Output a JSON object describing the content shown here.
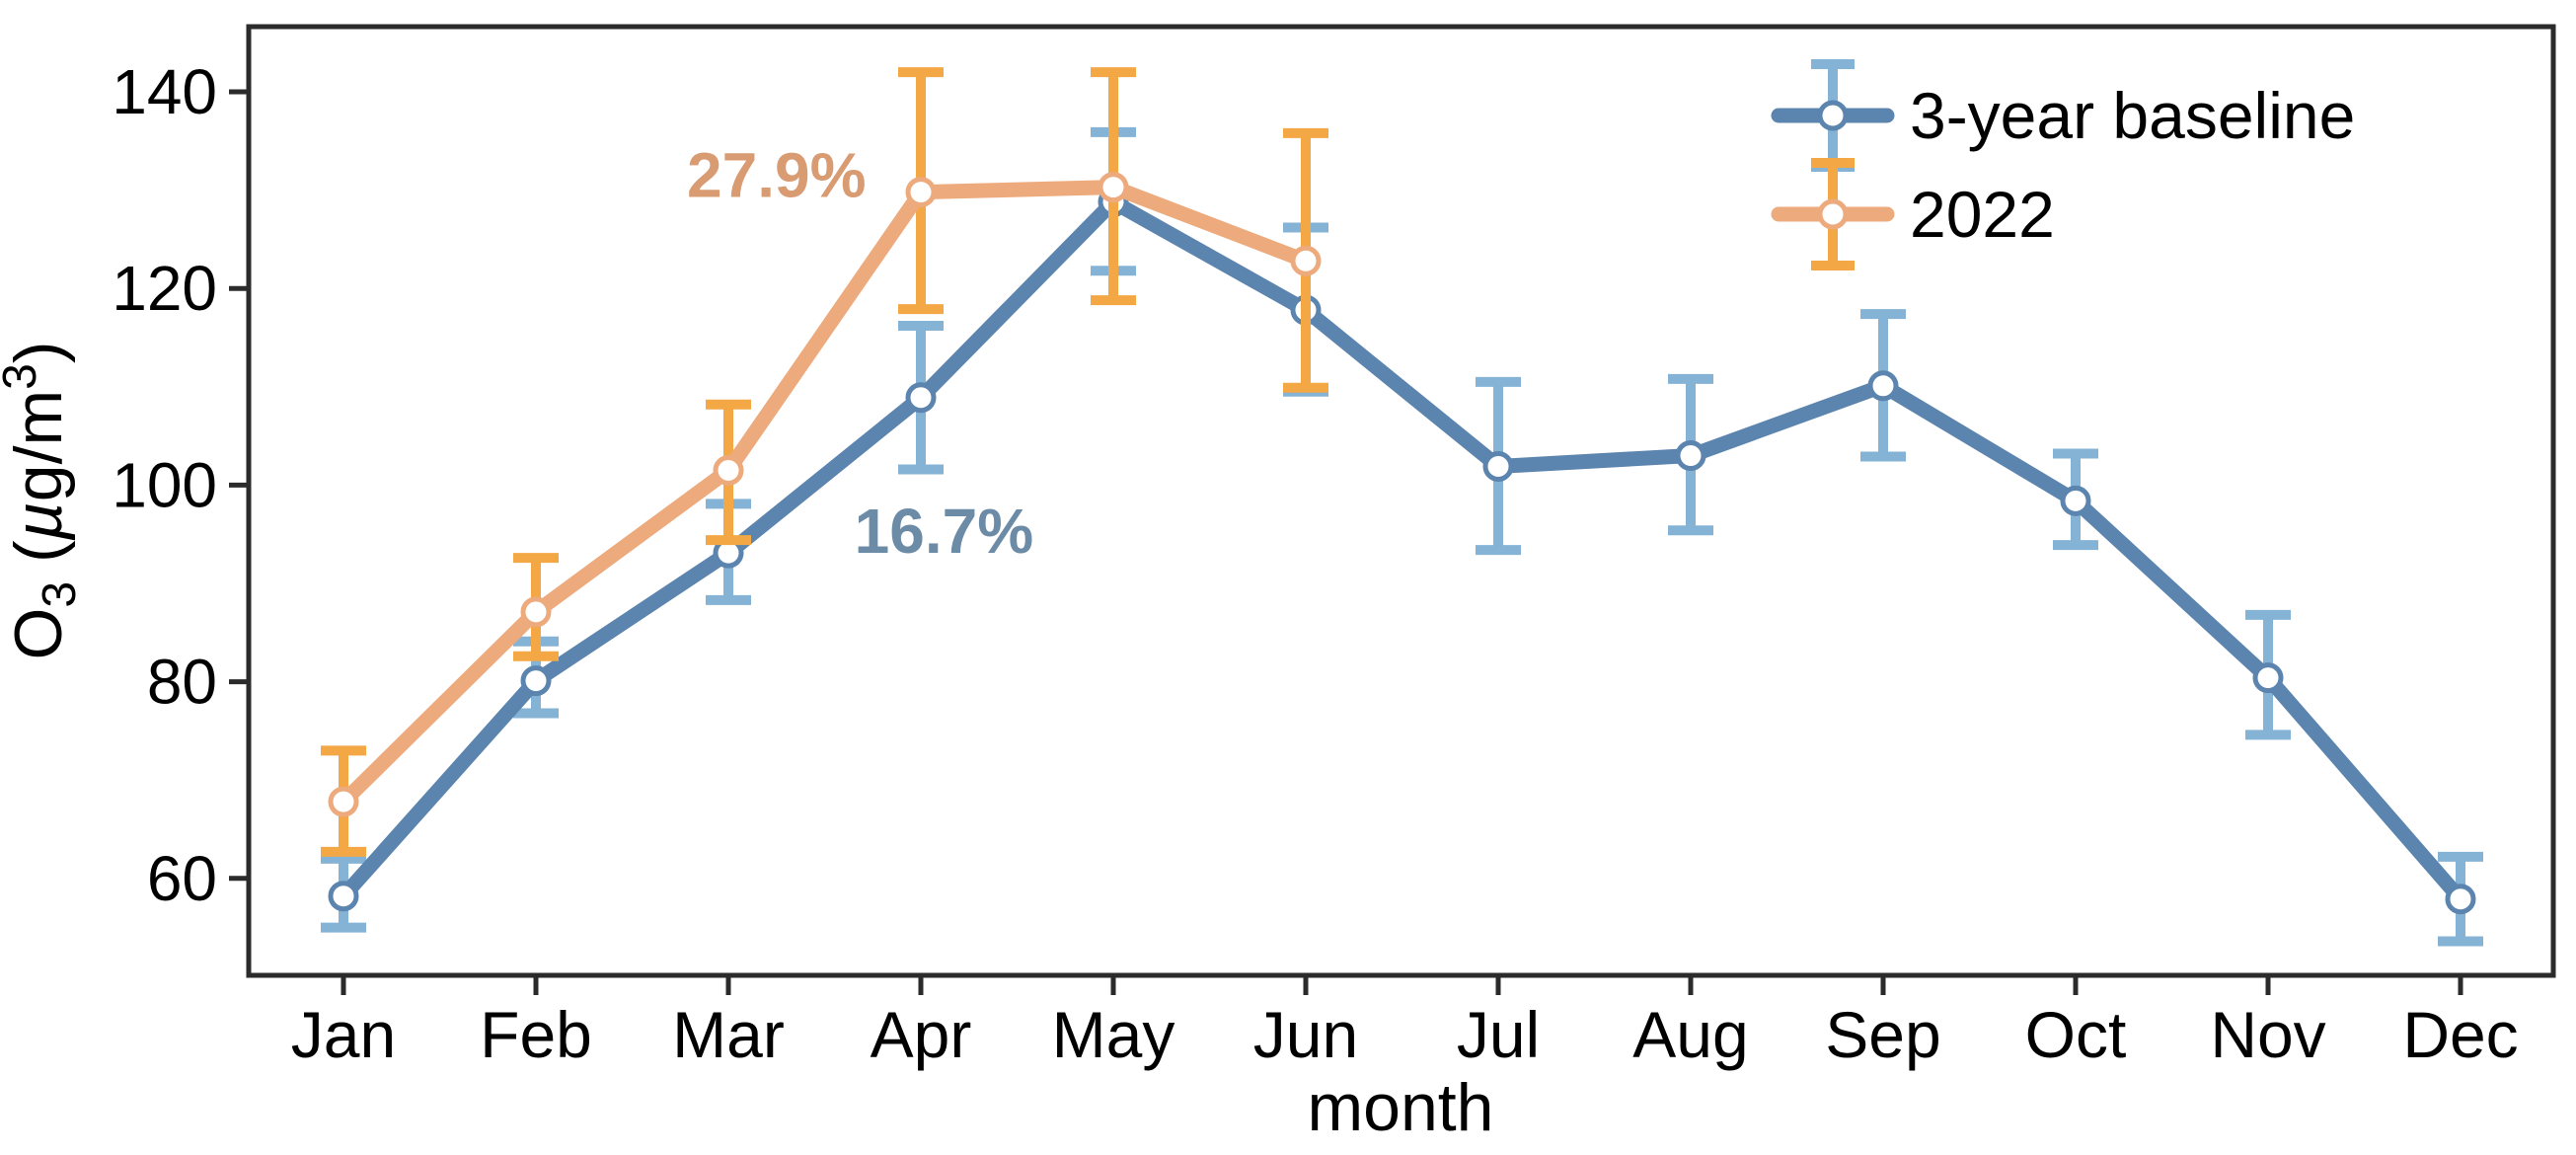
{
  "figure": {
    "xlabel": "month",
    "ylabel": "O₃ (µg/m³)",
    "ylabel_parts": {
      "o": "O",
      "sub": "3",
      "mid": " (",
      "mu": "µ",
      "rest": "g/m",
      "sup": "3",
      "close": ")"
    }
  },
  "legend": {
    "position": "top-right",
    "entries": [
      {
        "label": "3-year baseline"
      },
      {
        "label": "2022"
      }
    ]
  },
  "colors": {
    "baseline_line": "#5b84ae",
    "baseline_error": "#85b3d6",
    "y2022_line": "#edaa7d",
    "y2022_error": "#f3a845",
    "annotation_2022": "#d89b72",
    "annotation_baseline": "#6b8ba6",
    "spine": "#2b2b2b",
    "tick_text": "#000000",
    "marker_fill": "#ffffff"
  },
  "chart_data": {
    "type": "line",
    "title": "",
    "xlabel": "month",
    "ylabel": "O3 (ug/m3)",
    "categories": [
      "Jan",
      "Feb",
      "Mar",
      "Apr",
      "May",
      "Jun",
      "Jul",
      "Aug",
      "Sep",
      "Oct",
      "Nov",
      "Dec"
    ],
    "yticks": [
      60,
      80,
      100,
      120,
      140
    ],
    "ylim": [
      50,
      146.5
    ],
    "grid": false,
    "legend_position": "upper right",
    "series": [
      {
        "name": "3-year baseline",
        "values": [
          58.2,
          80.1,
          93.1,
          108.9,
          128.8,
          117.8,
          101.9,
          103.0,
          110.1,
          98.4,
          80.4,
          57.9
        ],
        "err_minus": [
          3.2,
          3.3,
          4.8,
          7.3,
          7.0,
          8.3,
          8.5,
          7.6,
          7.2,
          4.5,
          5.8,
          4.3
        ],
        "err_plus": [
          3.8,
          4.0,
          5.0,
          7.3,
          7.1,
          8.4,
          8.6,
          7.8,
          7.3,
          4.8,
          6.4,
          4.3
        ]
      },
      {
        "name": "2022",
        "values": [
          67.8,
          87.1,
          101.5,
          129.8,
          130.3,
          122.8
        ],
        "err_minus": [
          5.1,
          4.5,
          7.1,
          11.9,
          11.5,
          12.9
        ],
        "err_plus": [
          5.2,
          5.5,
          6.7,
          12.2,
          11.7,
          13.0
        ]
      }
    ],
    "annotations": [
      {
        "text": "27.9%",
        "x_month": 2.25,
        "y_value": 131.5,
        "series": "2022"
      },
      {
        "text": "16.7%",
        "x_month": 3.12,
        "y_value": 95.3,
        "series": "3-year baseline"
      }
    ]
  }
}
